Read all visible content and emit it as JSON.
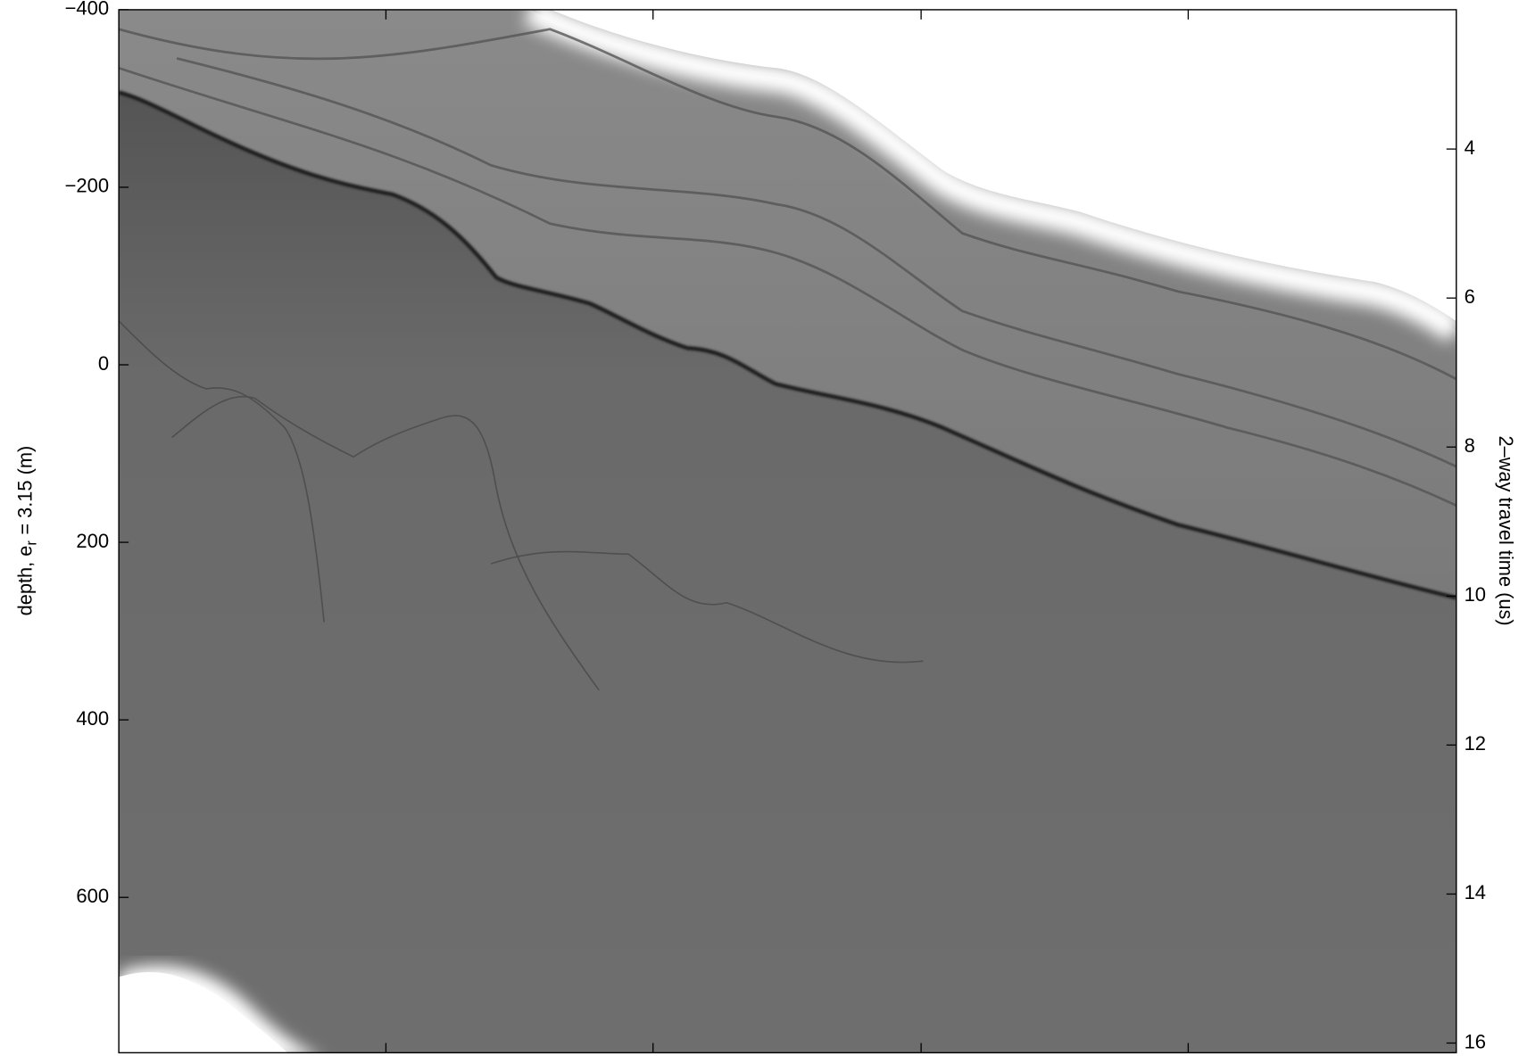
{
  "chart_data": {
    "type": "radargram",
    "ylabel": {
      "text": "depth, e",
      "subscript": "r",
      "rest": "= 3.15 (m)"
    },
    "y2label": "2–way travel time (us)",
    "ylim": [
      -400,
      775
    ],
    "yticks": [
      {
        "value": -400,
        "label": "−400"
      },
      {
        "value": -200,
        "label": "−200"
      },
      0,
      200,
      400,
      600
    ],
    "y2lim": [
      2.13,
      16.13
    ],
    "y2ticks": [
      4,
      6,
      8,
      10,
      12,
      14,
      16
    ],
    "reversed": true
  }
}
